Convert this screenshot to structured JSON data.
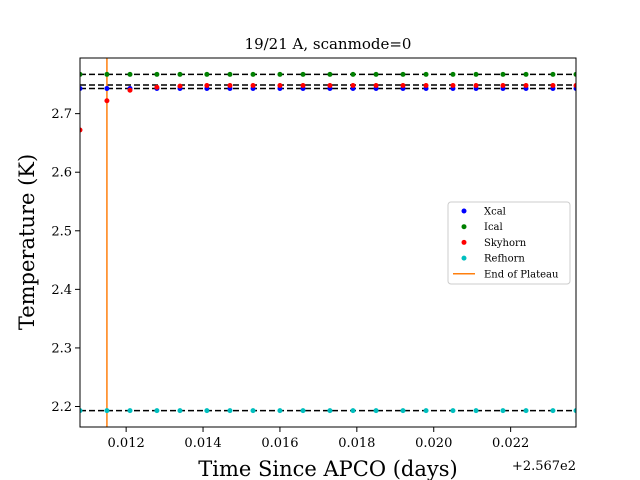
{
  "chart_data": {
    "type": "scatter",
    "title": "19/21 A, scanmode=0",
    "xlabel": "Time Since APCO (days)",
    "ylabel": "Temperature (K)",
    "x_offset_label": "+2.567e2",
    "xlim": [
      256.7108,
      256.7237
    ],
    "ylim": [
      2.165,
      2.795
    ],
    "x_ticks": [
      256.712,
      256.714,
      256.716,
      256.718,
      256.72,
      256.722
    ],
    "x_tick_labels": [
      "0.012",
      "0.014",
      "0.016",
      "0.018",
      "0.020",
      "0.022"
    ],
    "y_ticks": [
      2.2,
      2.3,
      2.4,
      2.5,
      2.6,
      2.7
    ],
    "y_tick_labels": [
      "2.2",
      "2.3",
      "2.4",
      "2.5",
      "2.6",
      "2.7"
    ],
    "x": [
      256.7108,
      256.7115,
      256.7121,
      256.7128,
      256.7134,
      256.7141,
      256.7147,
      256.7153,
      256.716,
      256.7166,
      256.7173,
      256.7179,
      256.7185,
      256.7192,
      256.7198,
      256.7205,
      256.7211,
      256.7218,
      256.7224,
      256.7231,
      256.7237
    ],
    "series": [
      {
        "name": "Xcal",
        "color": "#0000ff",
        "values": [
          2.743,
          2.743,
          2.743,
          2.743,
          2.743,
          2.743,
          2.743,
          2.743,
          2.743,
          2.743,
          2.743,
          2.743,
          2.743,
          2.743,
          2.743,
          2.743,
          2.743,
          2.743,
          2.743,
          2.743,
          2.743
        ]
      },
      {
        "name": "Ical",
        "color": "#008000",
        "values": [
          2.767,
          2.767,
          2.767,
          2.767,
          2.767,
          2.767,
          2.767,
          2.767,
          2.767,
          2.767,
          2.767,
          2.767,
          2.767,
          2.767,
          2.767,
          2.767,
          2.767,
          2.767,
          2.767,
          2.767,
          2.767
        ]
      },
      {
        "name": "Skyhorn",
        "color": "#ff0000",
        "values": [
          2.672,
          2.722,
          2.74,
          2.745,
          2.747,
          2.748,
          2.748,
          2.748,
          2.748,
          2.748,
          2.748,
          2.748,
          2.748,
          2.748,
          2.748,
          2.748,
          2.748,
          2.748,
          2.748,
          2.748,
          2.748
        ]
      },
      {
        "name": "Refhorn",
        "color": "#00bfbf",
        "values": [
          2.193,
          2.193,
          2.193,
          2.193,
          2.193,
          2.193,
          2.193,
          2.193,
          2.193,
          2.193,
          2.193,
          2.193,
          2.193,
          2.193,
          2.193,
          2.193,
          2.193,
          2.193,
          2.193,
          2.193,
          2.193
        ]
      }
    ],
    "hlines": [
      2.767,
      2.749,
      2.743,
      2.193
    ],
    "hline_style": "dashed black",
    "vline": {
      "name": "End of Plateau",
      "x": 256.7115,
      "color": "#ff7f0e"
    },
    "legend_position": "center-right",
    "grid": false
  }
}
